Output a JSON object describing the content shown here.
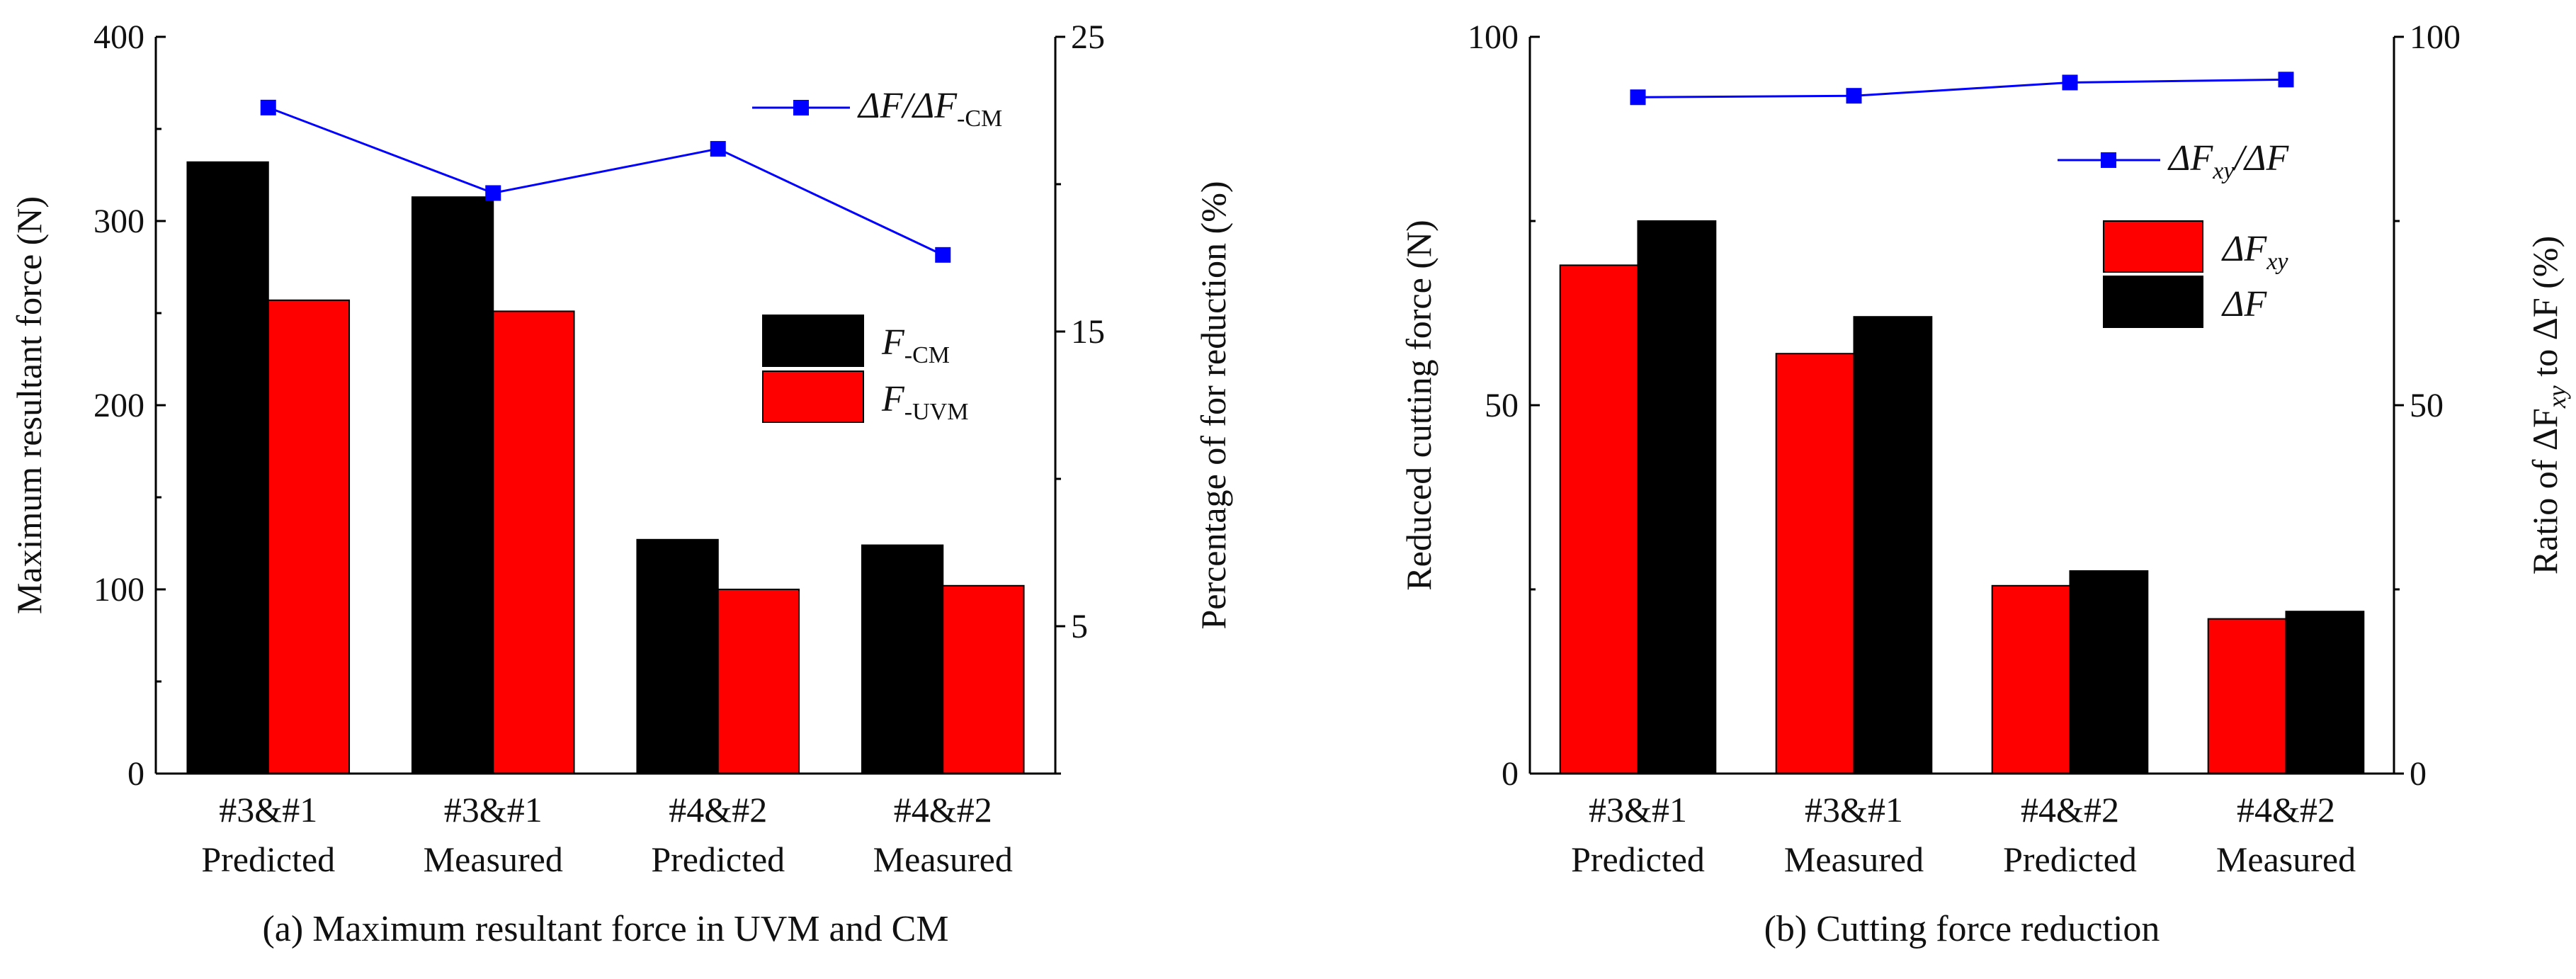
{
  "chart_data": [
    {
      "type": "bar",
      "title": "",
      "caption": "(a) Maximum resultant force in UVM and CM",
      "categories": [
        {
          "line1": "#3&#1",
          "line2": "Predicted"
        },
        {
          "line1": "#3&#1",
          "line2": "Measured"
        },
        {
          "line1": "#4&#2",
          "line2": "Predicted"
        },
        {
          "line1": "#4&#2",
          "line2": "Measured"
        }
      ],
      "ylabel": "Maximum resultant force (N)",
      "ylim": [
        0,
        400
      ],
      "yticks": [
        "0",
        "100",
        "200",
        "300",
        "400"
      ],
      "y2label": "Percentage of for reduction (%)",
      "y2lim": [
        0,
        25
      ],
      "y2ticks": [
        "5",
        "15",
        "25"
      ],
      "series": [
        {
          "name": "F-CM",
          "legend_main": "F",
          "legend_sub": "-CM",
          "color": "#000000",
          "axis": "left",
          "kind": "bar",
          "values": [
            332,
            313,
            127,
            124
          ]
        },
        {
          "name": "F-UVM",
          "legend_main": "F",
          "legend_sub": "-UVM",
          "color": "#ff0000",
          "axis": "left",
          "kind": "bar",
          "values": [
            257,
            251,
            100,
            102
          ]
        },
        {
          "name": "ΔF/ΔF-CM",
          "legend_main": "ΔF/ΔF",
          "legend_sub": "-CM",
          "color": "#0000ff",
          "axis": "right",
          "kind": "line",
          "values": [
            22.6,
            19.7,
            21.2,
            17.6
          ]
        }
      ]
    },
    {
      "type": "bar",
      "title": "",
      "caption": "(b) Cutting force reduction",
      "categories": [
        {
          "line1": "#3&#1",
          "line2": "Predicted"
        },
        {
          "line1": "#3&#1",
          "line2": "Measured"
        },
        {
          "line1": "#4&#2",
          "line2": "Predicted"
        },
        {
          "line1": "#4&#2",
          "line2": "Measured"
        }
      ],
      "ylabel": "Reduced cutting force (N)",
      "ylim": [
        0,
        100
      ],
      "yticks": [
        "0",
        "50",
        "100"
      ],
      "y2label": "Ratio of ΔFxy to ΔF (%)",
      "y2lim": [
        0,
        100
      ],
      "y2ticks": [
        "0",
        "50",
        "100"
      ],
      "series": [
        {
          "name": "ΔFxy",
          "legend_main": "ΔF",
          "legend_sub": "xy",
          "color": "#ff0000",
          "axis": "left",
          "kind": "bar",
          "values": [
            69,
            57,
            25.5,
            21
          ]
        },
        {
          "name": "ΔF",
          "legend_main": "ΔF",
          "legend_sub": "",
          "color": "#000000",
          "axis": "left",
          "kind": "bar",
          "values": [
            75,
            62,
            27.5,
            22
          ]
        },
        {
          "name": "ΔFxy/ΔF",
          "legend_main": "ΔF",
          "legend_sub": "xy",
          "legend_tail": "/ΔF",
          "color": "#0000ff",
          "axis": "right",
          "kind": "line",
          "values": [
            91.8,
            92,
            93.8,
            94.2
          ]
        }
      ]
    }
  ]
}
